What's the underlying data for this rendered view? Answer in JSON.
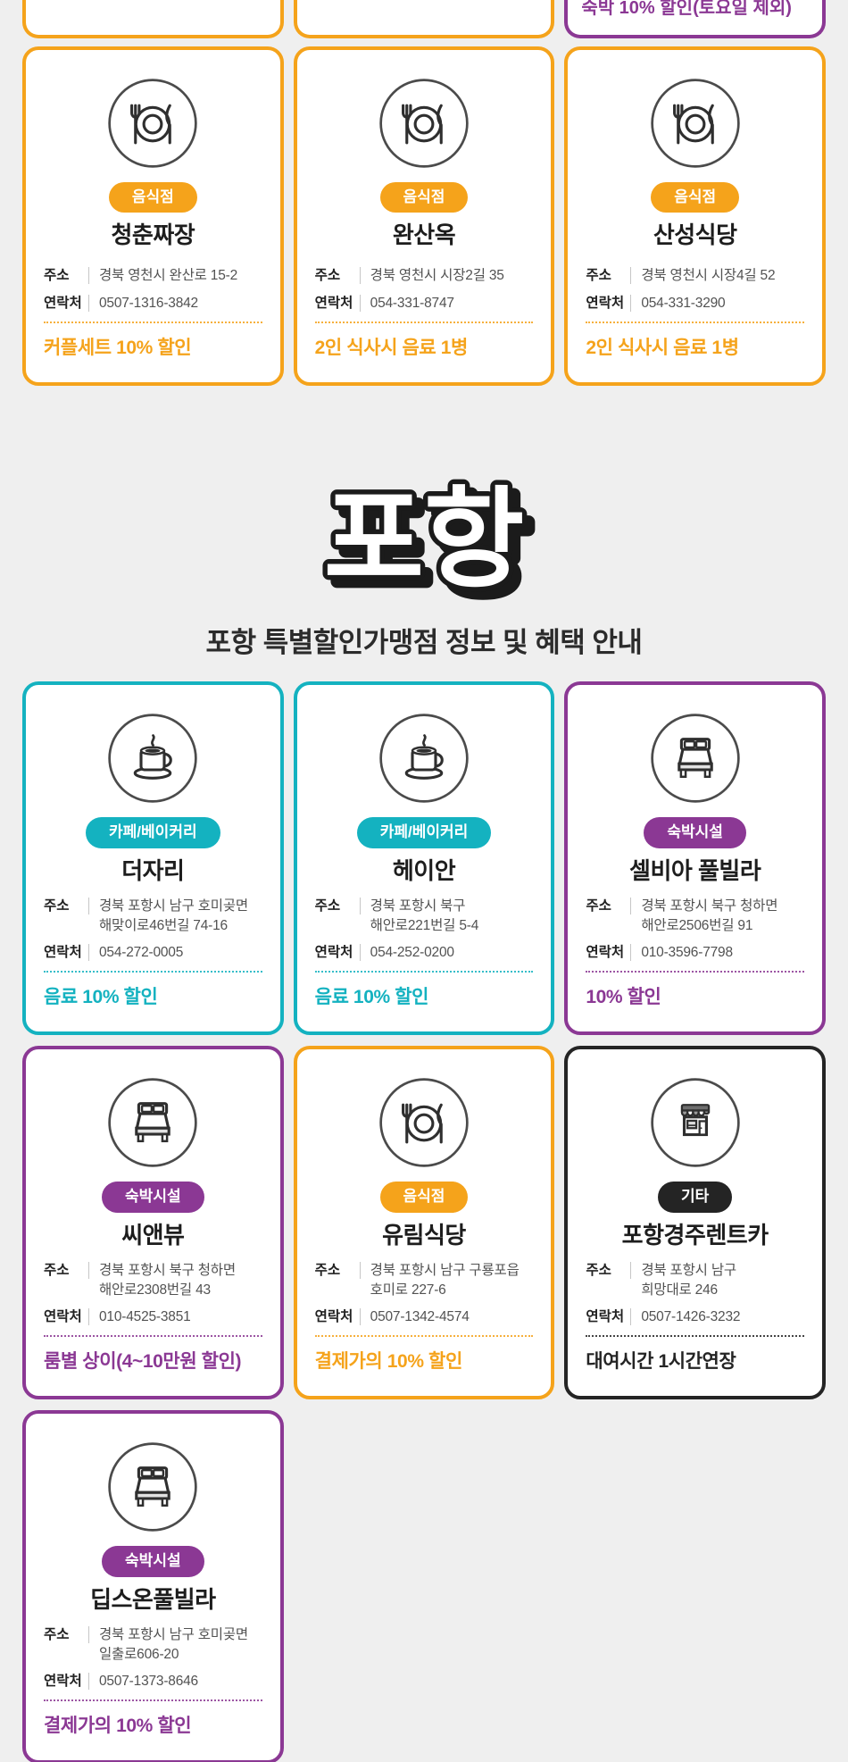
{
  "colors": {
    "orange": "#F5A31B",
    "teal": "#14B2C0",
    "purple": "#8B3894",
    "black": "#242424",
    "page_bg": "#EFEFEF",
    "text_dark": "#222222",
    "text_gray": "#525252"
  },
  "labels": {
    "address": "주소",
    "contact": "연락처"
  },
  "top_partial_cards": [
    {
      "color": "orange",
      "benefit": ""
    },
    {
      "color": "orange",
      "benefit": ""
    },
    {
      "color": "purple",
      "benefit": "숙박 10% 할인(토요일 제외)"
    }
  ],
  "yeongcheon_cards": [
    {
      "category": "음식점",
      "icon": "restaurant",
      "color": "orange",
      "name": "청춘짜장",
      "address_line1": "경북 영천시 완산로 15-2",
      "phone": "0507-1316-3842",
      "benefit": "커플세트 10% 할인"
    },
    {
      "category": "음식점",
      "icon": "restaurant",
      "color": "orange",
      "name": "완산옥",
      "address_line1": "경북 영천시 시장2길 35",
      "phone": "054-331-8747",
      "benefit": "2인 식사시 음료 1병"
    },
    {
      "category": "음식점",
      "icon": "restaurant",
      "color": "orange",
      "name": "산성식당",
      "address_line1": "경북 영천시 시장4길 52",
      "phone": "054-331-3290",
      "benefit": "2인 식사시 음료 1병"
    }
  ],
  "section": {
    "title": "포항",
    "subtitle": "포항 특별할인가맹점 정보 및 혜택 안내"
  },
  "pohang_cards": [
    {
      "category": "카페/베이커리",
      "icon": "cafe",
      "color": "teal",
      "name": "더자리",
      "address_line1": "경북 포항시 남구 호미곶면",
      "address_line2": "해맞이로46번길 74-16",
      "phone": "054-272-0005",
      "benefit": "음료 10% 할인"
    },
    {
      "category": "카페/베이커리",
      "icon": "cafe",
      "color": "teal",
      "name": "헤이안",
      "address_line1": "경북 포항시 북구",
      "address_line2": "해안로221번길 5-4",
      "phone": "054-252-0200",
      "benefit": "음료 10% 할인"
    },
    {
      "category": "숙박시설",
      "icon": "bed",
      "color": "purple",
      "name": "셀비아 풀빌라",
      "address_line1": "경북 포항시 북구 청하면",
      "address_line2": "해안로2506번길 91",
      "phone": "010-3596-7798",
      "benefit": "10% 할인"
    },
    {
      "category": "숙박시설",
      "icon": "bed",
      "color": "purple",
      "name": "씨앤뷰",
      "address_line1": "경북 포항시 북구 청하면",
      "address_line2": "해안로2308번길 43",
      "phone": "010-4525-3851",
      "benefit": "룸별 상이(4~10만원 할인)"
    },
    {
      "category": "음식점",
      "icon": "restaurant",
      "color": "orange",
      "name": "유림식당",
      "address_line1": "경북 포항시 남구 구룡포읍",
      "address_line2": "호미로 227-6",
      "phone": "0507-1342-4574",
      "benefit": "결제가의 10% 할인"
    },
    {
      "category": "기타",
      "icon": "store",
      "color": "black",
      "name": "포항경주렌트카",
      "address_line1": "경북 포항시 남구",
      "address_line2": "희망대로 246",
      "phone": "0507-1426-3232",
      "benefit": "대여시간 1시간연장"
    },
    {
      "category": "숙박시설",
      "icon": "bed",
      "color": "purple",
      "name": "딥스온풀빌라",
      "address_line1": "경북 포항시 남구 호미곶면",
      "address_line2": "일출로606-20",
      "phone": "0507-1373-8646",
      "benefit": "결제가의 10% 할인"
    }
  ]
}
